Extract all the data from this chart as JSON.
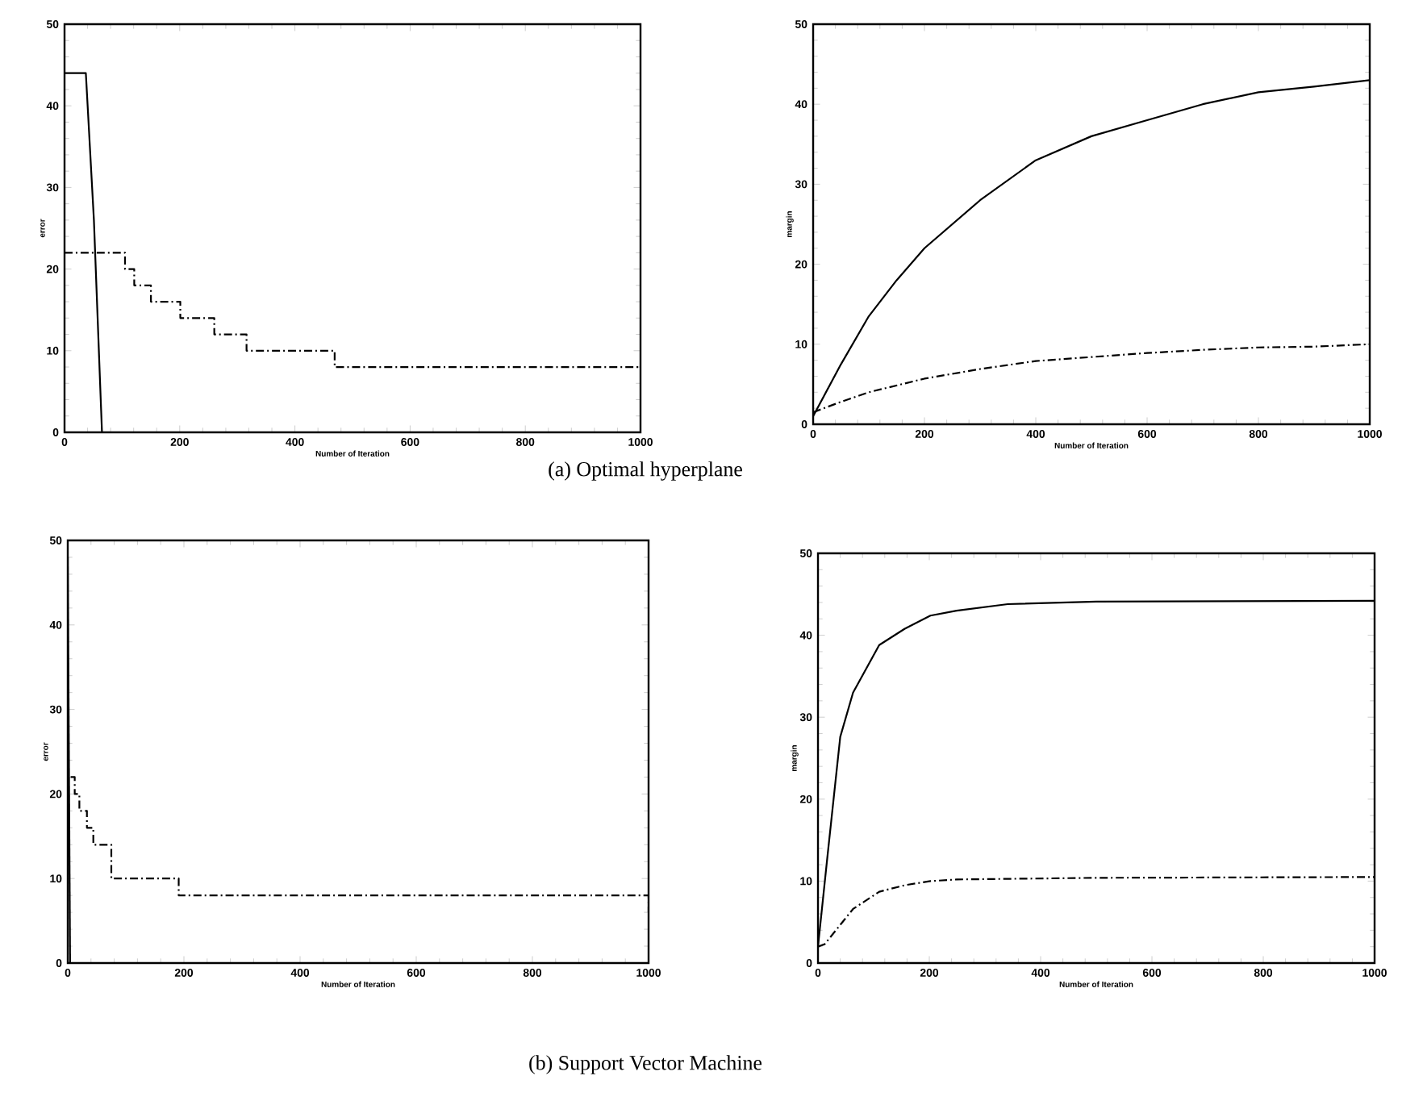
{
  "chart_data": [
    {
      "type": "line",
      "xlabel": "Number of Iteration",
      "ylabel": "error",
      "xlim": [
        0,
        1000
      ],
      "ylim": [
        0,
        50
      ],
      "xticks": [
        0,
        200,
        400,
        600,
        800,
        1000
      ],
      "yticks": [
        0,
        10,
        20,
        30,
        40,
        50
      ],
      "annotations": [
        "(a)  Optimal hyperplane"
      ],
      "series": [
        {
          "type": "line",
          "color": "#000000",
          "line_style": "solid",
          "x": [
            0,
            37,
            51,
            65
          ],
          "values": [
            44,
            44,
            26,
            0
          ]
        },
        {
          "type": "step",
          "color": "#000000",
          "line_style": "dashed",
          "x": [
            0,
            105,
            121,
            150,
            201,
            260,
            316,
            469,
            1000
          ],
          "values": [
            22,
            20,
            18,
            16,
            14,
            12,
            10,
            8,
            8
          ]
        }
      ]
    },
    {
      "type": "line",
      "xlabel": "Number of Iteration",
      "ylabel": "margin",
      "xlim": [
        0,
        1000
      ],
      "ylim": [
        0,
        50
      ],
      "xticks": [
        0,
        200,
        400,
        600,
        800,
        1000
      ],
      "yticks": [
        0,
        10,
        20,
        30,
        40,
        50
      ],
      "series": [
        {
          "type": "line",
          "color": "#000000",
          "line_style": "solid",
          "x": [
            0,
            50,
            100,
            150,
            200,
            300,
            400,
            500,
            600,
            700,
            800,
            900,
            1000
          ],
          "values": [
            1,
            7.5,
            13.5,
            18,
            22,
            28,
            33,
            36,
            38,
            40,
            41.5,
            42.2,
            43
          ]
        },
        {
          "type": "line",
          "color": "#000000",
          "line_style": "dashed",
          "x": [
            0,
            50,
            100,
            200,
            300,
            400,
            500,
            600,
            700,
            800,
            900,
            1000
          ],
          "values": [
            1.5,
            2.8,
            4,
            5.7,
            6.9,
            7.9,
            8.4,
            8.9,
            9.3,
            9.6,
            9.7,
            10
          ]
        }
      ]
    },
    {
      "type": "line",
      "xlabel": "Number of Iteration",
      "ylabel": "error",
      "xlim": [
        0,
        1000
      ],
      "ylim": [
        0,
        50
      ],
      "xticks": [
        0,
        200,
        400,
        600,
        800,
        1000
      ],
      "yticks": [
        0,
        10,
        20,
        30,
        40,
        50
      ],
      "annotations": [
        "(b) Support Vector Machine"
      ],
      "series": [
        {
          "type": "line",
          "color": "#000000",
          "line_style": "solid",
          "x": [
            0,
            4
          ],
          "values": [
            48,
            0
          ]
        },
        {
          "type": "step",
          "color": "#000000",
          "line_style": "dashed",
          "x": [
            5,
            12,
            20,
            33,
            44,
            75,
            191,
            1000
          ],
          "values": [
            22,
            20,
            18,
            16,
            14,
            10,
            8,
            6
          ]
        }
      ]
    },
    {
      "type": "line",
      "xlabel": "Number of Iteration",
      "ylabel": "margin",
      "xlim": [
        0,
        1000
      ],
      "ylim": [
        0,
        50
      ],
      "xticks": [
        0,
        200,
        400,
        600,
        800,
        1000
      ],
      "yticks": [
        0,
        10,
        20,
        30,
        40,
        50
      ],
      "series": [
        {
          "type": "line",
          "color": "#000000",
          "line_style": "solid",
          "x": [
            0,
            17,
            40,
            63,
            110,
            156,
            202,
            249,
            341,
            500,
            1000
          ],
          "values": [
            2,
            13,
            27.6,
            33,
            38.8,
            40.8,
            42.4,
            43,
            43.8,
            44.1,
            44.2
          ]
        },
        {
          "type": "line",
          "color": "#000000",
          "line_style": "dashed",
          "x": [
            0,
            12,
            63,
            110,
            156,
            202,
            249,
            500,
            1000
          ],
          "values": [
            2,
            2.3,
            6.6,
            8.7,
            9.5,
            10,
            10.2,
            10.4,
            10.5
          ]
        }
      ]
    }
  ]
}
